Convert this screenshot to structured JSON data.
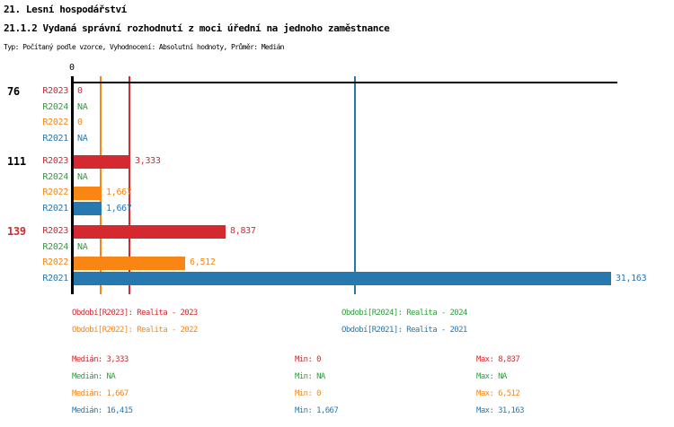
{
  "header": {
    "title": "21. Lesní hospodářství",
    "subtitle": "21.1.2 Vydaná správní rozhodnutí z moci úřední na jednoho zaměstnance",
    "meta": "Typ: Počítaný podle vzorce, Vyhodnocení: Absolutní hodnoty, Průměr: Medián"
  },
  "colors": {
    "r2023": "#D4292E",
    "r2024": "#2E9E3C",
    "r2022": "#F98612",
    "r2021": "#2878B0",
    "axis": "#000000",
    "background": "#FFFFFF"
  },
  "chart_data": {
    "type": "bar",
    "orientation": "horizontal",
    "title": "21.1.2 Vydaná správní rozhodnutí z moci úřední na jednoho zaměstnance",
    "xlabel": "",
    "ylabel": "",
    "x_axis": {
      "tick_labels": [
        "0"
      ],
      "min": 0,
      "max": 31.5,
      "grid": false
    },
    "series_order": [
      "R2023",
      "R2024",
      "R2022",
      "R2021"
    ],
    "groups": [
      {
        "label": "76",
        "label_color": "#000000",
        "bars": [
          {
            "series": "R2023",
            "value": 0,
            "value_label": "0"
          },
          {
            "series": "R2024",
            "value": null,
            "value_label": "NA"
          },
          {
            "series": "R2022",
            "value": 0,
            "value_label": "0"
          },
          {
            "series": "R2021",
            "value": null,
            "value_label": "NA"
          }
        ]
      },
      {
        "label": "111",
        "label_color": "#000000",
        "bars": [
          {
            "series": "R2023",
            "value": 3.333,
            "value_label": "3,333"
          },
          {
            "series": "R2024",
            "value": null,
            "value_label": "NA"
          },
          {
            "series": "R2022",
            "value": 1.667,
            "value_label": "1,667"
          },
          {
            "series": "R2021",
            "value": 1.667,
            "value_label": "1,667"
          }
        ]
      },
      {
        "label": "139",
        "label_color": "#D4292E",
        "bars": [
          {
            "series": "R2023",
            "value": 8.837,
            "value_label": "8,837"
          },
          {
            "series": "R2024",
            "value": null,
            "value_label": "NA"
          },
          {
            "series": "R2022",
            "value": 6.512,
            "value_label": "6,512"
          },
          {
            "series": "R2021",
            "value": 31.163,
            "value_label": "31,163"
          }
        ]
      }
    ],
    "median_lines": [
      {
        "series": "R2022",
        "value": 1.667
      },
      {
        "series": "R2023",
        "value": 3.333
      },
      {
        "series": "R2021",
        "value": 16.415
      }
    ],
    "legend": [
      {
        "series": "R2023",
        "text": "Období[R2023]: Realita - 2023"
      },
      {
        "series": "R2024",
        "text": "Období[R2024]: Realita - 2024"
      },
      {
        "series": "R2022",
        "text": "Období[R2022]: Realita - 2022"
      },
      {
        "series": "R2021",
        "text": "Období[R2021]: Realita - 2021"
      }
    ],
    "stats": [
      {
        "series": "R2023",
        "median": "Medián: 3,333",
        "min": "Min: 0",
        "max": "Max: 8,837"
      },
      {
        "series": "R2024",
        "median": "Medián: NA",
        "min": "Min: NA",
        "max": "Max: NA"
      },
      {
        "series": "R2022",
        "median": "Medián: 1,667",
        "min": "Min: 0",
        "max": "Max: 6,512"
      },
      {
        "series": "R2021",
        "median": "Medián: 16,415",
        "min": "Min: 1,667",
        "max": "Max: 31,163"
      }
    ]
  }
}
